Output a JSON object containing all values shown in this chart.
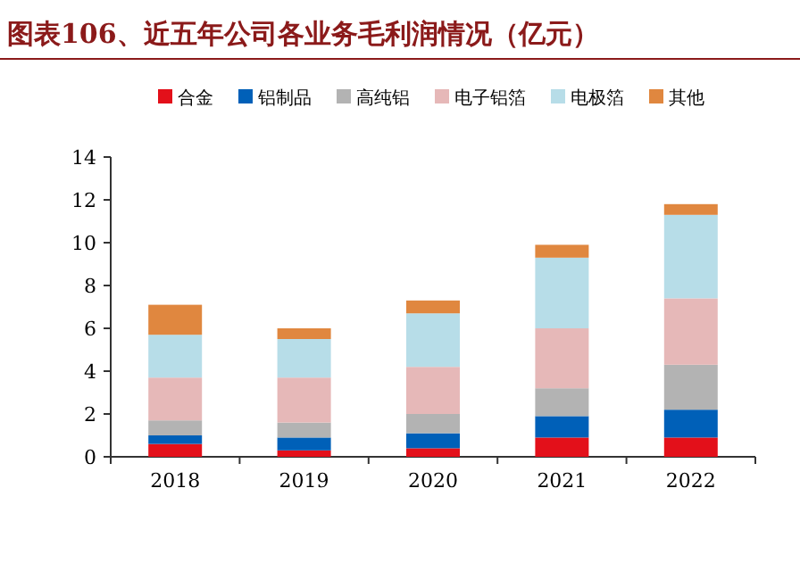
{
  "chart_data": {
    "type": "bar",
    "stacked": true,
    "title": "图表106、近五年公司各业务毛利润情况（亿元）",
    "categories": [
      "2018",
      "2019",
      "2020",
      "2021",
      "2022"
    ],
    "series": [
      {
        "name": "合金",
        "color": "#e3101a",
        "values": [
          0.6,
          0.3,
          0.4,
          0.9,
          0.9
        ]
      },
      {
        "name": "铝制品",
        "color": "#0060b8",
        "values": [
          0.4,
          0.6,
          0.7,
          1.0,
          1.3
        ]
      },
      {
        "name": "高纯铝",
        "color": "#b3b3b3",
        "values": [
          0.7,
          0.7,
          0.9,
          1.3,
          2.1
        ]
      },
      {
        "name": "电子铝箔",
        "color": "#e6b8b8",
        "values": [
          2.0,
          2.1,
          2.2,
          2.8,
          3.1
        ]
      },
      {
        "name": "电极箔",
        "color": "#b7dde8",
        "values": [
          2.0,
          1.8,
          2.5,
          3.3,
          3.9
        ]
      },
      {
        "name": "其他",
        "color": "#e0873f",
        "values": [
          1.4,
          0.5,
          0.6,
          0.6,
          0.5
        ]
      }
    ],
    "ylim": [
      0,
      14
    ],
    "yticks": [
      0,
      2,
      4,
      6,
      8,
      10,
      12,
      14
    ],
    "legend": "top",
    "grid": false
  }
}
